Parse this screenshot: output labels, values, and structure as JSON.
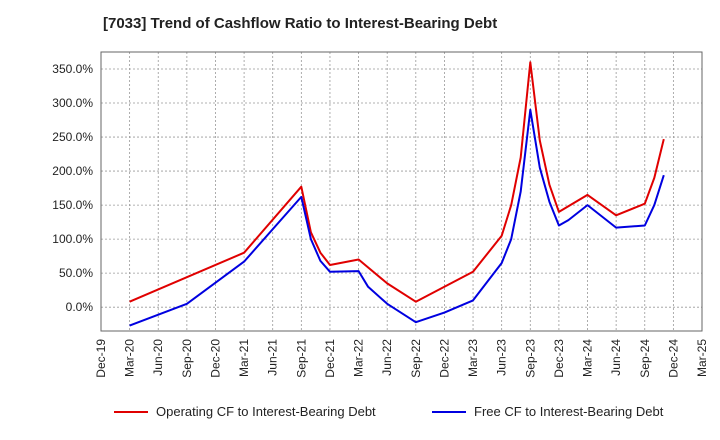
{
  "chart_data": {
    "type": "line",
    "title": "[7033]  Trend of Cashflow Ratio to Interest-Bearing Debt",
    "xlabel": "",
    "ylabel": "",
    "ylim": [
      -35,
      375
    ],
    "yticks": [
      0,
      50,
      100,
      150,
      200,
      250,
      300,
      350
    ],
    "ytick_labels": [
      "0.0%",
      "50.0%",
      "100.0%",
      "150.0%",
      "200.0%",
      "250.0%",
      "300.0%",
      "350.0%"
    ],
    "x_months_range": [
      "Dec-19",
      "Mar-25"
    ],
    "xtick_labels": [
      "Dec-19",
      "Mar-20",
      "Jun-20",
      "Sep-20",
      "Dec-20",
      "Mar-21",
      "Jun-21",
      "Sep-21",
      "Dec-21",
      "Mar-22",
      "Jun-22",
      "Sep-22",
      "Dec-22",
      "Mar-23",
      "Jun-23",
      "Sep-23",
      "Dec-23",
      "Mar-24",
      "Jun-24",
      "Sep-24",
      "Dec-24",
      "Mar-25"
    ],
    "grid": true,
    "legend_position": "bottom",
    "series": [
      {
        "name": "Operating CF to Interest-Bearing Debt",
        "color": "#e00000",
        "points": [
          [
            "Mar-20",
            8
          ],
          [
            "Mar-21",
            80
          ],
          [
            "Sep-21",
            177
          ],
          [
            "Oct-21",
            110
          ],
          [
            "Nov-21",
            80
          ],
          [
            "Dec-21",
            62
          ],
          [
            "Mar-22",
            70
          ],
          [
            "Jun-22",
            35
          ],
          [
            "Sep-22",
            8
          ],
          [
            "Dec-22",
            30
          ],
          [
            "Mar-23",
            52
          ],
          [
            "Jun-23",
            105
          ],
          [
            "Jul-23",
            150
          ],
          [
            "Aug-23",
            220
          ],
          [
            "Sep-23",
            360
          ],
          [
            "Oct-23",
            245
          ],
          [
            "Nov-23",
            180
          ],
          [
            "Dec-23",
            140
          ],
          [
            "Mar-24",
            165
          ],
          [
            "Jun-24",
            135
          ],
          [
            "Sep-24",
            152
          ],
          [
            "Oct-24",
            190
          ],
          [
            "Nov-24",
            247
          ]
        ]
      },
      {
        "name": "Free CF to Interest-Bearing Debt",
        "color": "#0000e0",
        "points": [
          [
            "Mar-20",
            -27
          ],
          [
            "Sep-20",
            5
          ],
          [
            "Mar-21",
            67
          ],
          [
            "Sep-21",
            162
          ],
          [
            "Oct-21",
            100
          ],
          [
            "Nov-21",
            68
          ],
          [
            "Dec-21",
            52
          ],
          [
            "Mar-22",
            53
          ],
          [
            "Apr-22",
            30
          ],
          [
            "Jun-22",
            5
          ],
          [
            "Sep-22",
            -22
          ],
          [
            "Dec-22",
            -8
          ],
          [
            "Mar-23",
            10
          ],
          [
            "Jun-23",
            65
          ],
          [
            "Jul-23",
            100
          ],
          [
            "Aug-23",
            170
          ],
          [
            "Sep-23",
            290
          ],
          [
            "Oct-23",
            205
          ],
          [
            "Nov-23",
            155
          ],
          [
            "Dec-23",
            120
          ],
          [
            "Jan-24",
            128
          ],
          [
            "Mar-24",
            150
          ],
          [
            "Jun-24",
            117
          ],
          [
            "Sep-24",
            120
          ],
          [
            "Oct-24",
            150
          ],
          [
            "Nov-24",
            194
          ]
        ]
      }
    ]
  }
}
